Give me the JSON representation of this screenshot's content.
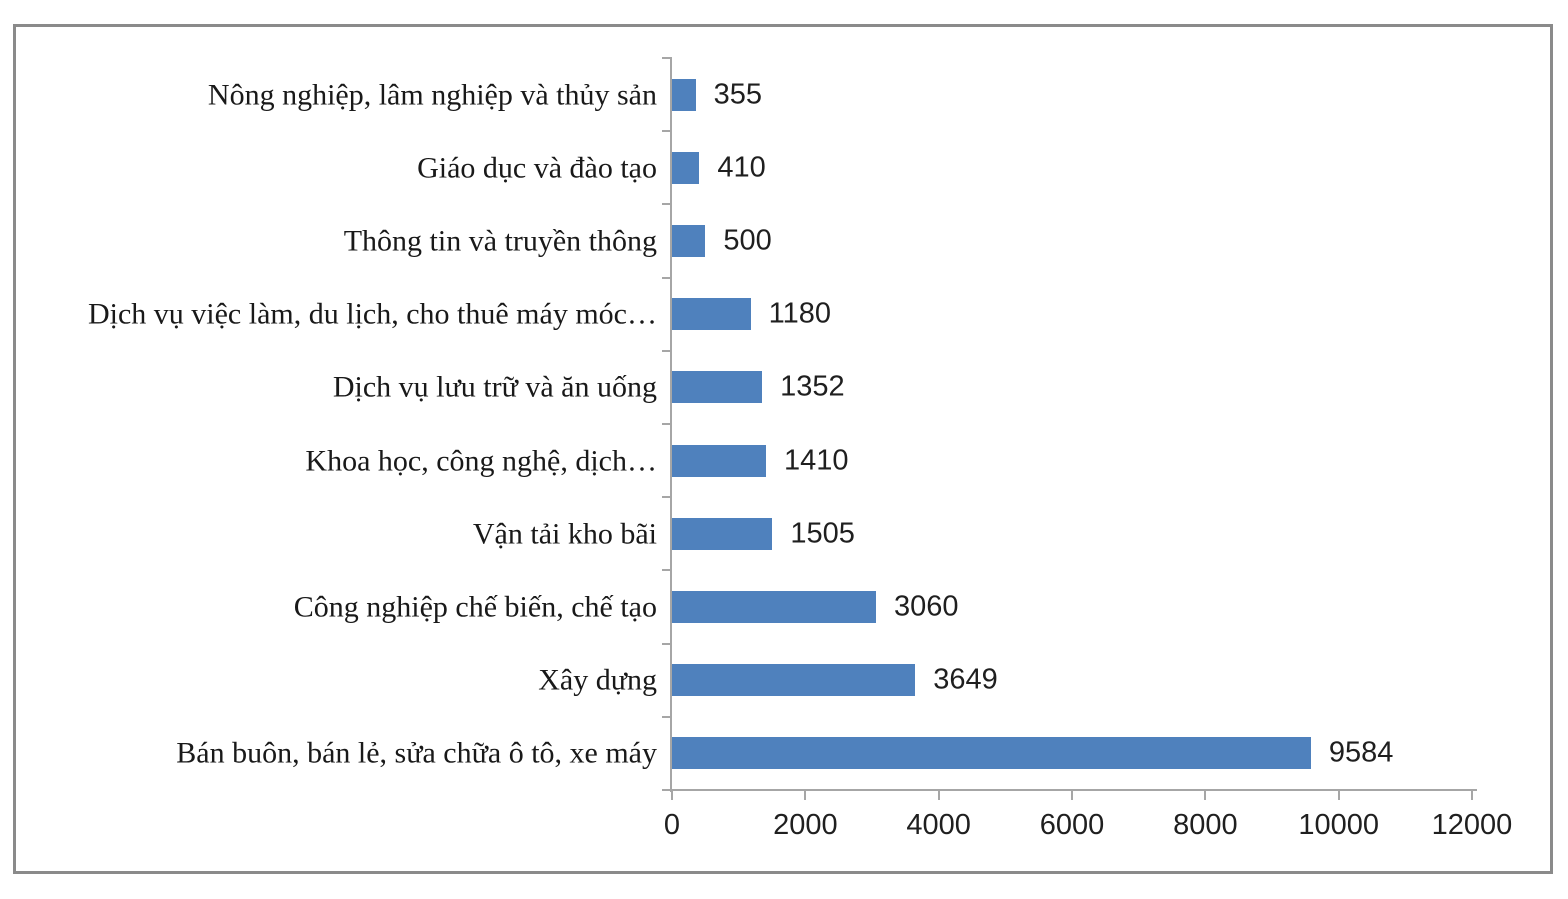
{
  "chart_data": {
    "type": "bar",
    "orientation": "horizontal",
    "title": "",
    "xlabel": "",
    "ylabel": "",
    "categories": [
      "Nông nghiệp, lâm nghiệp và thủy sản",
      "Giáo dục và đào tạo",
      "Thông tin và truyền thông",
      "Dịch vụ việc làm, du lịch, cho thuê máy móc…",
      "Dịch vụ lưu trữ và ăn uống",
      "Khoa học, công nghệ, dịch…",
      "Vận tải kho bãi",
      "Công nghiệp chế biến, chế tạo",
      "Xây dựng",
      "Bán buôn, bán lẻ, sửa chữa ô tô, xe máy"
    ],
    "values": [
      355,
      410,
      500,
      1180,
      1352,
      1410,
      1505,
      3060,
      3649,
      9584
    ],
    "data_labels": [
      "355",
      "410",
      "500",
      "1180",
      "1352",
      "1410",
      "1505",
      "3060",
      "3649",
      "9584"
    ],
    "xlim": [
      0,
      12000
    ],
    "xtick_values": [
      0,
      2000,
      4000,
      6000,
      8000,
      10000,
      12000
    ],
    "xtick_labels": [
      "0",
      "2000",
      "4000",
      "6000",
      "8000",
      "10000",
      "12000"
    ],
    "grid": false,
    "legend": "none",
    "colors": {
      "bar": "#4F81BD",
      "axis": "#a6a6a6",
      "text": "#191919",
      "value_text": "#1f1f1f",
      "frame_border": "#8a8a8a",
      "background": "#ffffff"
    }
  }
}
